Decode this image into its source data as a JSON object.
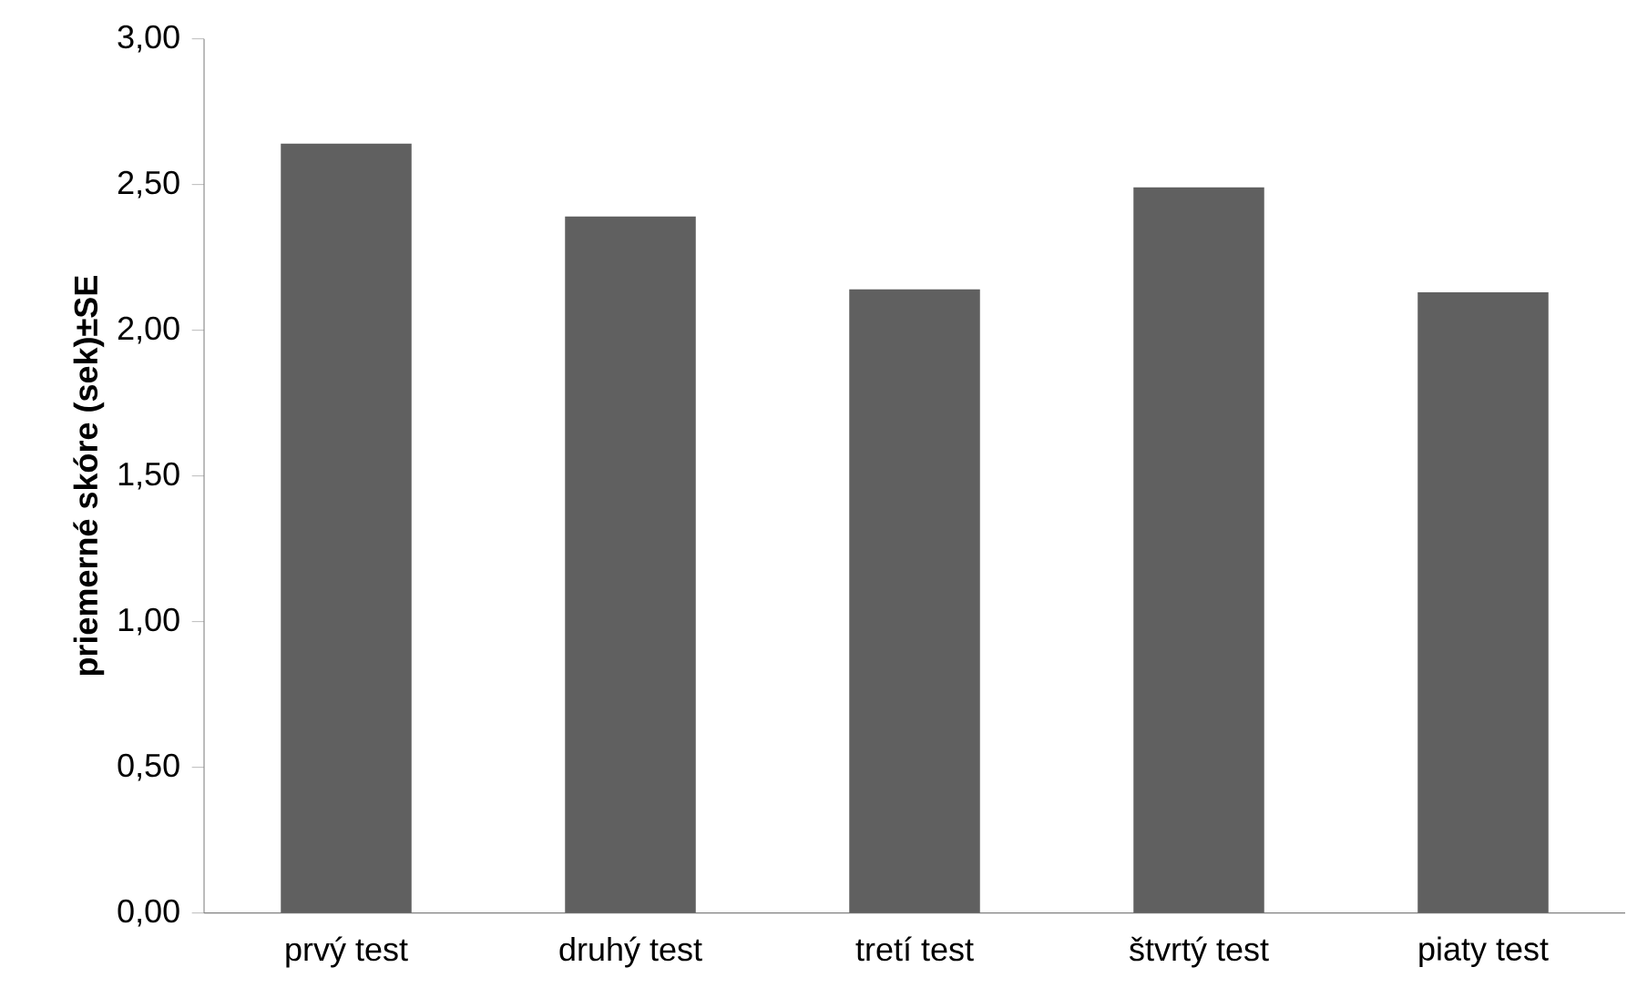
{
  "chart_data": {
    "type": "bar",
    "ylabel": "priemerné skóre (sek)±SE",
    "categories": [
      "prvý test",
      "druhý test",
      "tretí test",
      "štvrtý test",
      "piaty test"
    ],
    "values": [
      2.64,
      2.39,
      2.14,
      2.49,
      2.13
    ],
    "color": "#606060",
    "ylim": [
      0,
      3
    ],
    "yticks": [
      {
        "value": 0,
        "label": "0,00"
      },
      {
        "value": 0.5,
        "label": "0,50"
      },
      {
        "value": 1,
        "label": "1,00"
      },
      {
        "value": 1.5,
        "label": "1,50"
      },
      {
        "value": 2,
        "label": "2,00"
      },
      {
        "value": 2.5,
        "label": "2,50"
      },
      {
        "value": 3,
        "label": "3,00"
      }
    ],
    "line_style": "solid"
  }
}
